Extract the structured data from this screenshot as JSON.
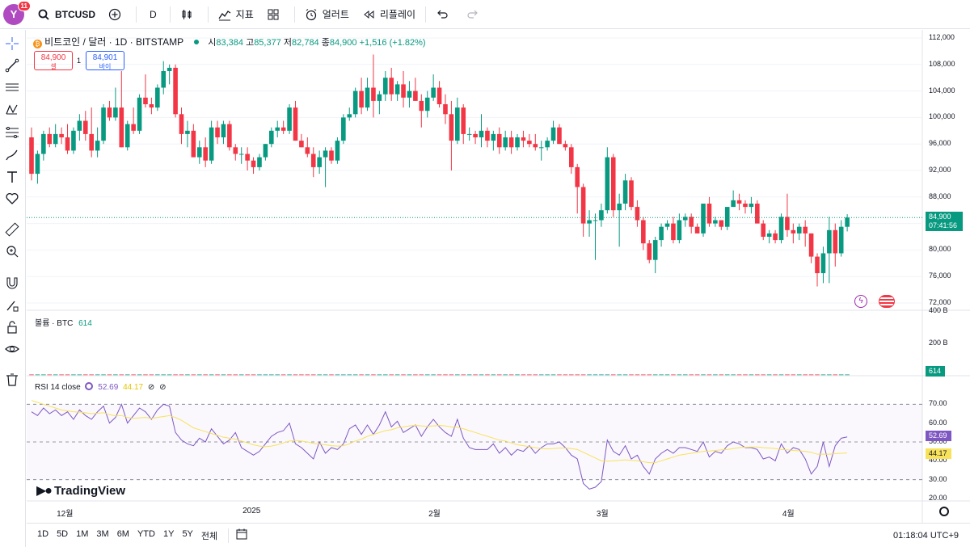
{
  "topbar": {
    "avatar_letter": "Y",
    "avatar_badge": "11",
    "symbol": "BTCUSD",
    "interval": "D",
    "indicators_label": "지표",
    "alert_label": "얼러트",
    "replay_label": "리플레이"
  },
  "legend": {
    "title": "비트코인 / 달러 · 1D · BITSTAMP",
    "o_label": "시",
    "o_value": "83,384",
    "h_label": "고",
    "h_value": "85,377",
    "l_label": "저",
    "l_value": "82,784",
    "c_label": "종",
    "c_value": "84,900",
    "change": "+1,516 (+1.82%)",
    "sell_price": "84,900",
    "sell_label": "셀",
    "spread": "1",
    "buy_price": "84,901",
    "buy_label": "바이"
  },
  "volume_legend": {
    "title": "볼륨 · BTC",
    "value": "614"
  },
  "rsi_legend": {
    "title": "RSI 14 close",
    "rsi_value": "52.69",
    "ma_value": "44.17"
  },
  "price_tag": {
    "price": "84,900",
    "countdown": "07:41:56"
  },
  "volume_tag": "614",
  "rsi_tag": "52.69",
  "rsi_ma_tag": "44.17",
  "price_axis": [
    "112,000",
    "108,000",
    "104,000",
    "100,000",
    "96,000",
    "92,000",
    "88,000",
    "84,000",
    "80,000",
    "76,000",
    "72,000"
  ],
  "volume_axis": [
    "400 B",
    "200 B"
  ],
  "rsi_axis": [
    "70.00",
    "60.00",
    "50.00",
    "40.00",
    "30.00",
    "20.00"
  ],
  "time_axis": [
    "12월",
    "2025",
    "2월",
    "3월",
    "4월"
  ],
  "brand": "TradingView",
  "bottombar": {
    "ranges": [
      "1D",
      "5D",
      "1M",
      "3M",
      "6M",
      "YTD",
      "1Y",
      "5Y",
      "전체"
    ],
    "clock": "01:18:04 UTC+9"
  },
  "colors": {
    "up": "#089981",
    "down": "#f23645",
    "rsi": "#7e57c2",
    "rsi_ma": "#f7e25a"
  },
  "chart_data": {
    "type": "candlestick",
    "price_range": [
      72000,
      112000
    ],
    "candles": [
      [
        97000,
        98500,
        90500,
        91500
      ],
      [
        91500,
        95000,
        90000,
        94500
      ],
      [
        94500,
        98000,
        93500,
        97500
      ],
      [
        97500,
        98500,
        95500,
        96000
      ],
      [
        96000,
        99000,
        95500,
        97500
      ],
      [
        97500,
        98500,
        96000,
        97000
      ],
      [
        97000,
        99000,
        94500,
        95000
      ],
      [
        95000,
        98500,
        94500,
        98000
      ],
      [
        98000,
        100500,
        96500,
        99500
      ],
      [
        99500,
        101000,
        96500,
        97500
      ],
      [
        97500,
        101500,
        94000,
        95000
      ],
      [
        95000,
        98500,
        94000,
        96500
      ],
      [
        96500,
        102000,
        96000,
        101500
      ],
      [
        101500,
        102500,
        99500,
        100000
      ],
      [
        100000,
        104500,
        99500,
        101500
      ],
      [
        101500,
        107000,
        95500,
        95500
      ],
      [
        95500,
        99500,
        95000,
        99000
      ],
      [
        99000,
        101500,
        97500,
        98000
      ],
      [
        98000,
        103500,
        97500,
        103000
      ],
      [
        103000,
        106500,
        101500,
        102000
      ],
      [
        102000,
        103000,
        100500,
        101500
      ],
      [
        101500,
        105000,
        101000,
        104500
      ],
      [
        104500,
        108500,
        103500,
        107000
      ],
      [
        107000,
        108000,
        105000,
        107500
      ],
      [
        107500,
        108000,
        100000,
        100500
      ],
      [
        100500,
        101500,
        96000,
        97500
      ],
      [
        97500,
        99500,
        95500,
        98000
      ],
      [
        98000,
        99000,
        94000,
        94000
      ],
      [
        94000,
        96500,
        93000,
        95500
      ],
      [
        95500,
        97000,
        92500,
        93500
      ],
      [
        93500,
        99500,
        93000,
        98500
      ],
      [
        98500,
        99500,
        96000,
        97000
      ],
      [
        97000,
        99500,
        96000,
        99000
      ],
      [
        99000,
        99500,
        95000,
        95500
      ],
      [
        95500,
        96000,
        93500,
        94500
      ],
      [
        94500,
        95500,
        93000,
        94500
      ],
      [
        94500,
        95500,
        92000,
        93500
      ],
      [
        93500,
        94000,
        91500,
        92500
      ],
      [
        92500,
        94500,
        92000,
        94000
      ],
      [
        94000,
        96000,
        93500,
        96000
      ],
      [
        96000,
        98500,
        95500,
        98000
      ],
      [
        98000,
        99500,
        97000,
        98500
      ],
      [
        98500,
        99500,
        97500,
        98000
      ],
      [
        98000,
        102000,
        97500,
        101500
      ],
      [
        101500,
        102500,
        96500,
        96500
      ],
      [
        96500,
        97500,
        95500,
        95500
      ],
      [
        95500,
        97000,
        94000,
        94500
      ],
      [
        94500,
        95500,
        91000,
        92500
      ],
      [
        92500,
        95000,
        91500,
        94000
      ],
      [
        94000,
        95500,
        89500,
        95000
      ],
      [
        95000,
        95500,
        93000,
        93500
      ],
      [
        93500,
        97000,
        93000,
        96500
      ],
      [
        96500,
        100500,
        96000,
        100000
      ],
      [
        100000,
        101500,
        99500,
        100500
      ],
      [
        100500,
        104500,
        100000,
        104000
      ],
      [
        104000,
        106000,
        100500,
        101500
      ],
      [
        101500,
        106000,
        101000,
        104500
      ],
      [
        104500,
        109500,
        100000,
        102500
      ],
      [
        102500,
        104000,
        100500,
        103500
      ],
      [
        103500,
        107000,
        102500,
        106000
      ],
      [
        106000,
        107500,
        102500,
        103500
      ],
      [
        103500,
        105500,
        102500,
        105000
      ],
      [
        105000,
        107000,
        101500,
        103000
      ],
      [
        103000,
        105500,
        101500,
        104000
      ],
      [
        104000,
        106000,
        102500,
        102500
      ],
      [
        102500,
        103500,
        98500,
        101000
      ],
      [
        101000,
        104000,
        100000,
        103000
      ],
      [
        103000,
        106500,
        102500,
        104500
      ],
      [
        104500,
        105500,
        101500,
        102000
      ],
      [
        102000,
        103500,
        99000,
        100500
      ],
      [
        100500,
        102500,
        92000,
        96500
      ],
      [
        96500,
        103000,
        96000,
        101500
      ],
      [
        101500,
        102000,
        96000,
        97500
      ],
      [
        97500,
        98500,
        96500,
        97500
      ],
      [
        97500,
        98000,
        96000,
        97000
      ],
      [
        97000,
        100500,
        95500,
        98000
      ],
      [
        98000,
        98500,
        95500,
        96500
      ],
      [
        96500,
        98000,
        95000,
        97500
      ],
      [
        97500,
        98500,
        94500,
        95500
      ],
      [
        95500,
        98000,
        95000,
        97000
      ],
      [
        97000,
        98000,
        94500,
        95500
      ],
      [
        95500,
        97500,
        95000,
        97000
      ],
      [
        97000,
        98000,
        95500,
        96500
      ],
      [
        96500,
        97500,
        95500,
        96000
      ],
      [
        96000,
        97500,
        95000,
        95500
      ],
      [
        95500,
        96500,
        93500,
        95500
      ],
      [
        95500,
        97000,
        95000,
        96500
      ],
      [
        96500,
        99500,
        96000,
        98500
      ],
      [
        98500,
        99000,
        96000,
        96000
      ],
      [
        96000,
        96500,
        95000,
        95500
      ],
      [
        95500,
        96000,
        91500,
        92500
      ],
      [
        92500,
        93000,
        85500,
        89500
      ],
      [
        89500,
        90000,
        82000,
        84000
      ],
      [
        84000,
        86000,
        82000,
        84500
      ],
      [
        84500,
        85500,
        78500,
        84500
      ],
      [
        84500,
        87000,
        83500,
        86000
      ],
      [
        86000,
        95500,
        85500,
        94000
      ],
      [
        94000,
        94500,
        85000,
        86000
      ],
      [
        86000,
        88500,
        80500,
        87000
      ],
      [
        87000,
        91500,
        86000,
        90500
      ],
      [
        90500,
        91000,
        86000,
        86500
      ],
      [
        86500,
        87500,
        83500,
        84500
      ],
      [
        84500,
        85000,
        80000,
        81000
      ],
      [
        81000,
        81500,
        78000,
        78500
      ],
      [
        78500,
        82000,
        76500,
        81500
      ],
      [
        81500,
        84000,
        80500,
        83500
      ],
      [
        83500,
        84500,
        83000,
        84000
      ],
      [
        84000,
        85000,
        81000,
        81500
      ],
      [
        81500,
        85500,
        81000,
        84500
      ],
      [
        84500,
        85500,
        83500,
        85000
      ],
      [
        85000,
        85500,
        82500,
        83500
      ],
      [
        83500,
        84000,
        82500,
        82500
      ],
      [
        82500,
        87000,
        82000,
        87000
      ],
      [
        87000,
        88000,
        83500,
        84000
      ],
      [
        84000,
        85000,
        83500,
        84500
      ],
      [
        84500,
        84500,
        83000,
        83500
      ],
      [
        83500,
        86500,
        83000,
        86500
      ],
      [
        86500,
        89000,
        86500,
        87500
      ],
      [
        87500,
        88500,
        86000,
        87000
      ],
      [
        87000,
        87500,
        85500,
        86500
      ],
      [
        86500,
        88000,
        85500,
        87000
      ],
      [
        87000,
        87500,
        84000,
        84000
      ],
      [
        84000,
        84500,
        81500,
        82000
      ],
      [
        82000,
        83000,
        81000,
        82500
      ],
      [
        82500,
        83000,
        81000,
        81500
      ],
      [
        81500,
        85500,
        81000,
        85000
      ],
      [
        85000,
        88500,
        82000,
        83000
      ],
      [
        83000,
        84000,
        81000,
        82500
      ],
      [
        82500,
        84000,
        81500,
        83500
      ],
      [
        83500,
        84500,
        80500,
        82500
      ],
      [
        82500,
        82500,
        78000,
        79000
      ],
      [
        79000,
        79500,
        74500,
        76500
      ],
      [
        76500,
        80500,
        75000,
        79500
      ],
      [
        79500,
        85000,
        75000,
        83000
      ],
      [
        83000,
        84000,
        77500,
        79500
      ],
      [
        79500,
        84500,
        79000,
        83500
      ],
      [
        83500,
        85400,
        82800,
        84900
      ]
    ],
    "volume_panel_title": "볼륨 · BTC",
    "rsi_panel_title": "RSI 14 close",
    "rsi_range": [
      20,
      80
    ],
    "rsi": [
      66,
      64,
      68,
      65,
      67,
      64,
      66,
      62,
      67,
      64,
      62,
      66,
      69,
      60,
      63,
      70,
      60,
      64,
      68,
      66,
      62,
      67,
      70,
      69,
      55,
      51,
      49,
      48,
      52,
      50,
      57,
      53,
      49,
      51,
      55,
      47,
      45,
      43,
      45,
      49,
      53,
      55,
      56,
      60,
      49,
      47,
      44,
      41,
      50,
      44,
      47,
      46,
      49,
      57,
      59,
      54,
      59,
      54,
      59,
      66,
      58,
      61,
      55,
      57,
      59,
      53,
      58,
      62,
      58,
      55,
      53,
      62,
      52,
      47,
      46,
      46,
      46,
      49,
      44,
      47,
      43,
      46,
      45,
      48,
      44,
      47,
      49,
      49,
      50,
      47,
      43,
      41,
      28,
      25,
      26,
      29,
      51,
      45,
      43,
      48,
      41,
      43,
      37,
      33,
      41,
      44,
      46,
      44,
      47,
      47,
      46,
      45,
      50,
      42,
      45,
      44,
      48,
      50,
      49,
      47,
      47,
      46,
      41,
      42,
      40,
      49,
      44,
      47,
      46,
      41,
      33,
      37,
      50,
      37,
      48,
      52,
      52.69
    ],
    "rsi_ma": [
      72,
      71,
      70,
      69,
      68,
      67,
      66.5,
      66,
      65.8,
      65.5,
      65,
      65.2,
      65.5,
      64.5,
      63.8,
      64,
      63,
      62.5,
      62.8,
      63,
      62.5,
      63,
      63.5,
      64,
      63,
      61.5,
      59.5,
      57.5,
      56.5,
      55.5,
      54.5,
      53.5,
      52.5,
      52,
      51.5,
      50.5,
      49.5,
      48.5,
      47.8,
      47.5,
      47.8,
      48.5,
      49.5,
      50.5,
      50.8,
      50.5,
      50,
      49.2,
      49,
      48.5,
      48,
      47.8,
      48,
      49,
      50.5,
      51.5,
      53,
      54,
      55,
      56,
      56.5,
      57.5,
      58,
      58.5,
      58.8,
      58.5,
      58.3,
      58.5,
      58.8,
      58.5,
      58,
      57.8,
      57,
      56,
      55,
      54,
      53,
      52,
      51,
      50.5,
      49.5,
      48.5,
      48,
      47.5,
      47,
      46.5,
      46.3,
      46.5,
      46.8,
      46.8,
      46.5,
      46,
      44.5,
      43,
      41.5,
      40,
      39.8,
      40,
      40.2,
      40.5,
      40.2,
      40,
      39.5,
      39,
      39,
      40,
      41,
      42,
      43,
      43.5,
      44,
      44.5,
      45,
      45.2,
      45.5,
      45.8,
      46,
      46.5,
      47,
      47.2,
      47.3,
      47.3,
      47,
      46.8,
      46.5,
      46,
      45.8,
      45.5,
      45.3,
      45,
      44.5,
      43.5,
      43.5,
      43.5,
      43.8,
      44,
      44.17
    ],
    "time_labels": [
      "12월",
      "2025",
      "2월",
      "3월",
      "4월"
    ]
  }
}
